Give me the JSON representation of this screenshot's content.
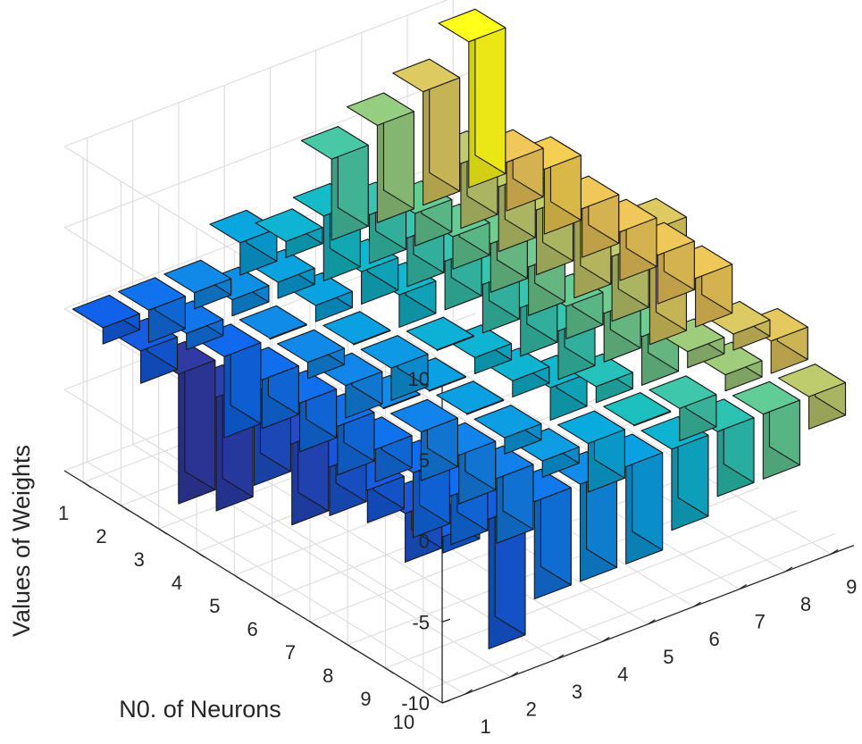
{
  "chart_data": {
    "type": "bar3d",
    "title": "",
    "zlabel": "Values of  Weights",
    "ylabel": "N0. of Neurons",
    "xlabel": "",
    "zlim": [
      -10,
      10
    ],
    "z_ticks": [
      "10",
      "5",
      "0",
      "-5",
      "-10"
    ],
    "x_ticks": [
      "1",
      "2",
      "3",
      "4",
      "5",
      "6",
      "7",
      "8",
      "9"
    ],
    "y_ticks": [
      "1",
      "2",
      "3",
      "4",
      "5",
      "6",
      "7",
      "8",
      "9",
      "10"
    ],
    "grid": true,
    "colormap": "parula",
    "values": [
      [
        -1,
        -2,
        -1,
        2,
        1,
        5,
        6,
        7,
        9
      ],
      [
        -2,
        -1,
        1,
        1,
        4,
        3,
        2,
        4,
        3
      ],
      [
        -8,
        -5,
        0,
        1,
        2,
        3,
        2,
        4,
        4
      ],
      [
        -7,
        -3,
        -1,
        0,
        2,
        3,
        3,
        4,
        3
      ],
      [
        -4,
        -3,
        -2,
        -2,
        0,
        3,
        3,
        5,
        3
      ],
      [
        -5,
        -3,
        0,
        0,
        1,
        3,
        2,
        4,
        3
      ],
      [
        -3,
        -2,
        -3,
        0,
        1,
        3,
        3,
        7,
        3
      ],
      [
        -2,
        -4,
        -3,
        -1,
        2,
        1,
        3,
        1,
        1
      ],
      [
        -3,
        -3,
        -4,
        -1,
        -3,
        0,
        -2,
        1,
        2
      ],
      [
        -1,
        -8,
        -6,
        -6,
        -6,
        -5,
        -4,
        -4,
        -2
      ]
    ]
  }
}
